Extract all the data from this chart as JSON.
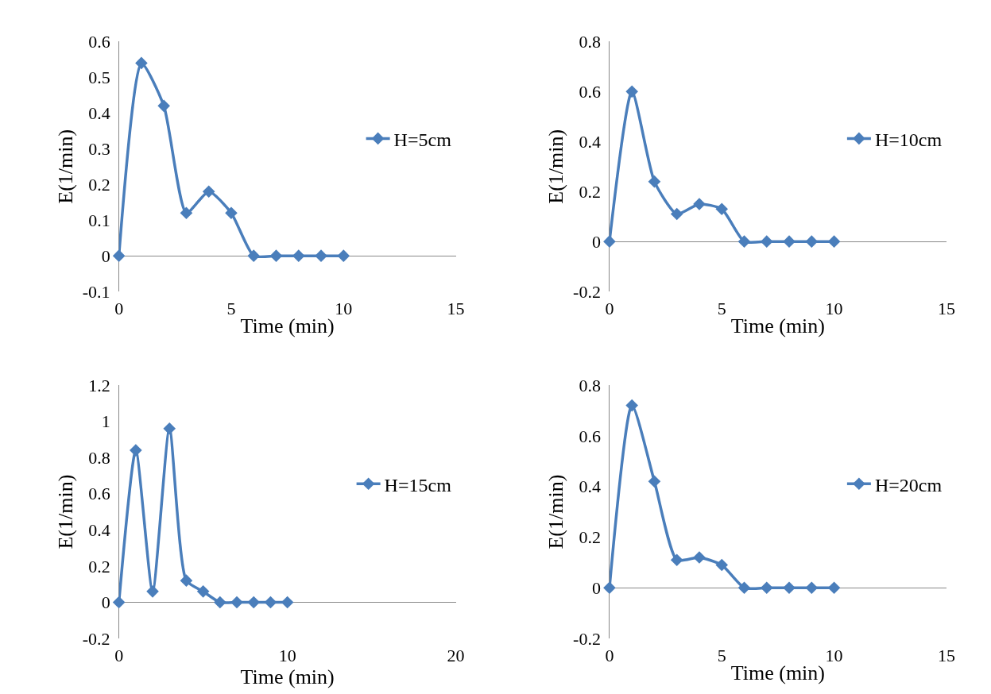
{
  "chart_data": [
    {
      "type": "line",
      "xlabel": "Time (min)",
      "ylabel": "E(1/min)",
      "x": [
        0,
        1,
        2,
        3,
        4,
        5,
        6,
        7,
        8,
        9,
        10
      ],
      "xlim": [
        0,
        15
      ],
      "xticks": [
        0,
        5,
        10,
        15
      ],
      "ylim": [
        -0.1,
        0.6
      ],
      "yticks": [
        -0.1,
        0,
        0.1,
        0.2,
        0.3,
        0.4,
        0.5,
        0.6
      ],
      "legend": "right",
      "marker": "diamond",
      "line_style": "solid",
      "series": [
        {
          "name": "H=5cm",
          "color": "#4a7ebb",
          "values": [
            0,
            0.54,
            0.42,
            0.12,
            0.18,
            0.12,
            0,
            0,
            0,
            0,
            0
          ]
        }
      ]
    },
    {
      "type": "line",
      "xlabel": "Time (min)",
      "ylabel": "E(1/min)",
      "x": [
        0,
        1,
        2,
        3,
        4,
        5,
        6,
        7,
        8,
        9,
        10
      ],
      "xlim": [
        0,
        15
      ],
      "xticks": [
        0,
        5,
        10,
        15
      ],
      "ylim": [
        -0.2,
        0.8
      ],
      "yticks": [
        -0.2,
        0,
        0.2,
        0.4,
        0.6,
        0.8
      ],
      "legend": "right",
      "marker": "diamond",
      "line_style": "solid",
      "series": [
        {
          "name": "H=10cm",
          "color": "#4a7ebb",
          "values": [
            0,
            0.6,
            0.24,
            0.11,
            0.15,
            0.13,
            0,
            0,
            0,
            0,
            0
          ]
        }
      ]
    },
    {
      "type": "line",
      "xlabel": "Time (min)",
      "ylabel": "E(1/min)",
      "x": [
        0,
        1,
        2,
        3,
        4,
        5,
        6,
        7,
        8,
        9,
        10
      ],
      "xlim": [
        0,
        20
      ],
      "xticks": [
        0,
        10,
        20
      ],
      "ylim": [
        -0.2,
        1.2
      ],
      "yticks": [
        -0.2,
        0,
        0.2,
        0.4,
        0.6,
        0.8,
        1,
        1.2
      ],
      "legend": "right",
      "marker": "diamond",
      "line_style": "solid",
      "series": [
        {
          "name": "H=15cm",
          "color": "#4a7ebb",
          "values": [
            0,
            0.84,
            0.06,
            0.96,
            0.12,
            0.06,
            0,
            0,
            0,
            0,
            0
          ]
        }
      ]
    },
    {
      "type": "line",
      "xlabel": "Time (min)",
      "ylabel": "E(1/min)",
      "x": [
        0,
        1,
        2,
        3,
        4,
        5,
        6,
        7,
        8,
        9,
        10
      ],
      "xlim": [
        0,
        15
      ],
      "xticks": [
        0,
        5,
        10,
        15
      ],
      "ylim": [
        -0.2,
        0.8
      ],
      "yticks": [
        -0.2,
        0,
        0.2,
        0.4,
        0.6,
        0.8
      ],
      "legend": "right",
      "marker": "diamond",
      "line_style": "solid",
      "series": [
        {
          "name": "H=20cm",
          "color": "#4a7ebb",
          "values": [
            0,
            0.72,
            0.42,
            0.11,
            0.12,
            0.09,
            0,
            0,
            0,
            0,
            0
          ]
        }
      ]
    }
  ]
}
